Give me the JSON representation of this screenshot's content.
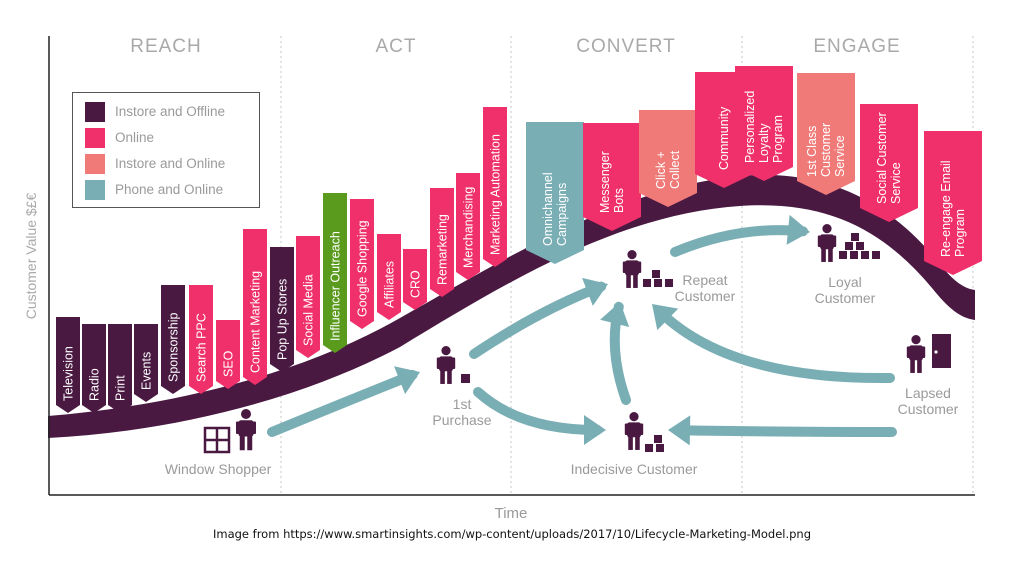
{
  "phases": [
    "REACH",
    "ACT",
    "CONVERT",
    "ENGAGE"
  ],
  "legend": [
    {
      "label": "Instore and Offline",
      "color": "#4a1942"
    },
    {
      "label": "Online",
      "color": "#f0306a"
    },
    {
      "label": "Instore and Online",
      "color": "#f07a78"
    },
    {
      "label": "Phone and Online",
      "color": "#7aaeb5"
    }
  ],
  "axes": {
    "y_label": "Customer Value $£€",
    "x_label": "Time"
  },
  "tactics": [
    {
      "label": "Television",
      "channel": "Instore and Offline"
    },
    {
      "label": "Radio",
      "channel": "Instore and Offline"
    },
    {
      "label": "Print",
      "channel": "Instore and Offline"
    },
    {
      "label": "Events",
      "channel": "Instore and Offline"
    },
    {
      "label": "Sponsorship",
      "channel": "Instore and Offline"
    },
    {
      "label": "Search PPC",
      "channel": "Online"
    },
    {
      "label": "SEO",
      "channel": "Online"
    },
    {
      "label": "Content Marketing",
      "channel": "Online"
    },
    {
      "label": "Pop Up Stores",
      "channel": "Instore and Offline"
    },
    {
      "label": "Social Media",
      "channel": "Online"
    },
    {
      "label": "Influencer Outreach",
      "channel": "",
      "color": "#5a9a1c"
    },
    {
      "label": "Google Shopping",
      "channel": "Online"
    },
    {
      "label": "Affiliates",
      "channel": "Online"
    },
    {
      "label": "CRO",
      "channel": "Online"
    },
    {
      "label": "Remarketing",
      "channel": "Online"
    },
    {
      "label": "Merchandising",
      "channel": "Online"
    },
    {
      "label": "Marketing Automation",
      "channel": "Online"
    },
    {
      "label": "Omnichannel Campaigns",
      "channel": "Phone and Online"
    },
    {
      "label": "Messenger Bots",
      "channel": "Online"
    },
    {
      "label": "Click + Collect",
      "channel": "Instore and Online"
    },
    {
      "label": "Community",
      "channel": "Online"
    },
    {
      "label": "Personalized Loyalty Program",
      "channel": "Online"
    },
    {
      "label": "1st Class Customer Service",
      "channel": "Instore and Online"
    },
    {
      "label": "Social Customer Service",
      "channel": "Online"
    },
    {
      "label": "Re-engage Email Program",
      "channel": "Online"
    }
  ],
  "customers": [
    {
      "label": "Window Shopper",
      "icon": "window-icon"
    },
    {
      "label": "1st Purchase",
      "icon": "box-icon"
    },
    {
      "label": "Repeat Customer",
      "icon": "boxes-icon"
    },
    {
      "label": "Loyal Customer",
      "icon": "box-pyramid-icon"
    },
    {
      "label": "Indecisive Customer",
      "icon": "boxes-icon"
    },
    {
      "label": "Lapsed Customer",
      "icon": "door-icon"
    }
  ],
  "caption": "Image from https://www.smartinsights.com/wp-content/uploads/2017/10/Lifecycle-Marketing-Model.png"
}
